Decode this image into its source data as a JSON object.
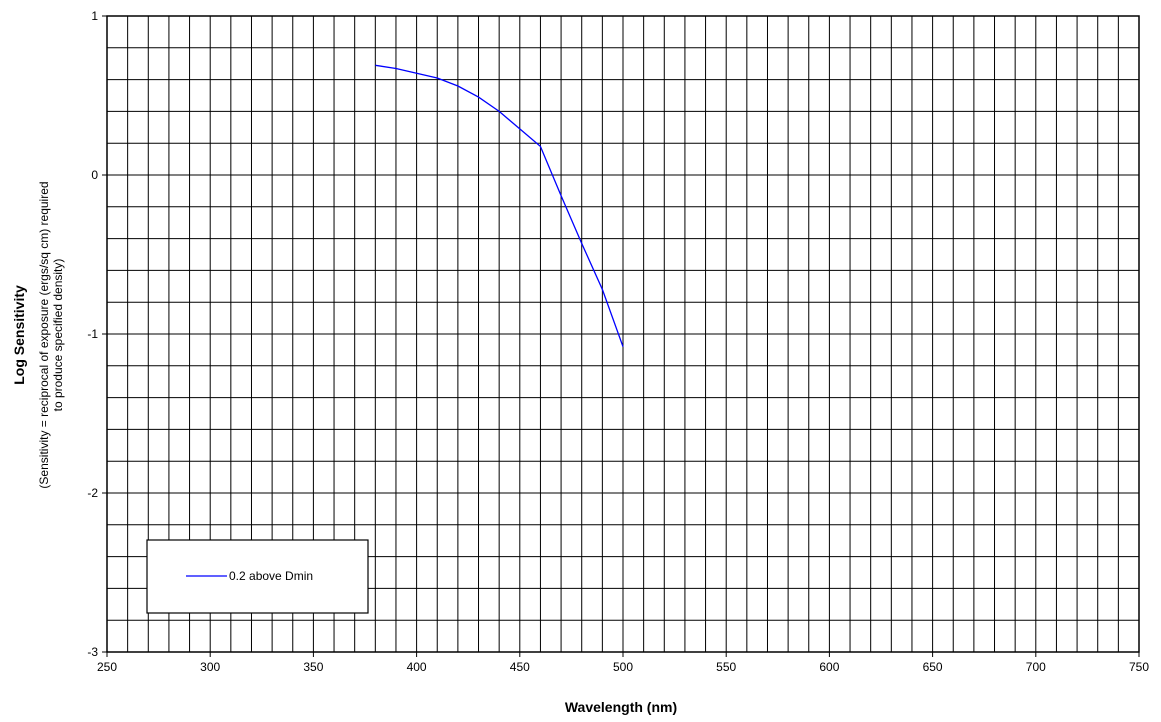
{
  "chart_data": {
    "type": "line",
    "title": "",
    "xlabel": "Wavelength (nm)",
    "ylabel": "Log Sensitivity",
    "ylabel_note_line1": "(Sensitivity = reciprocal of exposure (ergs/sq cm) required",
    "ylabel_note_line2": "to produce specified density)",
    "xlim": [
      250,
      750
    ],
    "ylim": [
      -3,
      1
    ],
    "x_ticks": [
      250,
      300,
      350,
      400,
      450,
      500,
      550,
      600,
      650,
      700,
      750
    ],
    "y_ticks": [
      1,
      0,
      -1,
      -2,
      -3
    ],
    "x_minor_step": 10,
    "y_minor_step": 0.2,
    "grid": true,
    "legend_position": "bottom-left",
    "series": [
      {
        "name": "0.2 above Dmin",
        "color": "#0000ff",
        "x": [
          380,
          390,
          400,
          410,
          420,
          430,
          440,
          450,
          460,
          470,
          480,
          490,
          500
        ],
        "y": [
          0.69,
          0.67,
          0.64,
          0.61,
          0.56,
          0.49,
          0.4,
          0.29,
          0.18,
          -0.13,
          -0.43,
          -0.72,
          -1.08
        ]
      }
    ]
  }
}
